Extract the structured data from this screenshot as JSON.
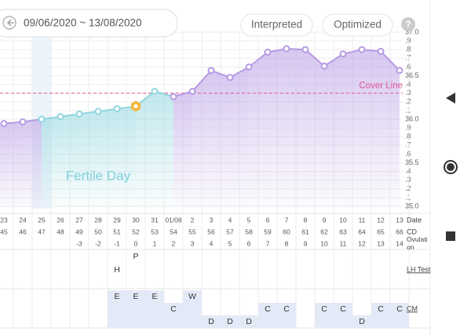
{
  "header": {
    "date_range": "09/06/2020 ~ 13/08/2020",
    "buttons": [
      "Interpreted",
      "Optimized"
    ],
    "help": "?"
  },
  "chart_data": {
    "type": "line",
    "categories": [
      "23",
      "24",
      "25",
      "26",
      "27",
      "28",
      "29",
      "30",
      "31",
      "01/08",
      "2",
      "3",
      "4",
      "5",
      "6",
      "7",
      "8",
      "9",
      "10",
      "11",
      "12",
      "13"
    ],
    "values": [
      35.95,
      35.97,
      36.0,
      36.03,
      36.06,
      36.09,
      36.12,
      36.15,
      36.32,
      36.26,
      36.32,
      36.56,
      36.48,
      36.6,
      36.77,
      36.81,
      36.8,
      36.61,
      36.75,
      36.8,
      36.78,
      36.56
    ],
    "color": "#b69ae4",
    "point_colors": [
      "#b69ae4",
      "#b69ae4",
      "#8fd6df",
      "#8fd6df",
      "#8fd6df",
      "#8fd6df",
      "#8fd6df",
      "#8fd6df",
      "#8fd6df",
      "#b69ae4",
      "#b69ae4",
      "#b69ae4",
      "#b69ae4",
      "#b69ae4",
      "#b69ae4",
      "#b69ae4",
      "#b69ae4",
      "#b69ae4",
      "#b69ae4",
      "#b69ae4",
      "#b69ae4",
      "#b69ae4"
    ],
    "ylim": [
      35,
      37
    ],
    "yticks": [
      {
        "value": 35,
        "label": "35.0"
      },
      {
        "value": 35.1,
        "label": ".1"
      },
      {
        "value": 35.2,
        "label": ".2"
      },
      {
        "value": 35.3,
        "label": ".3"
      },
      {
        "value": 35.4,
        "label": ".4"
      },
      35.5,
      {
        "value": 35.6,
        "label": ".6"
      },
      {
        "value": 35.7,
        "label": ".7"
      },
      {
        "value": 35.8,
        "label": ".8"
      },
      {
        "value": 35.9,
        "label": ".9"
      },
      {
        "value": 36,
        "label": "36.0"
      },
      {
        "value": 36.1,
        "label": ".1"
      },
      {
        "value": 36.2,
        "label": ".2"
      },
      {
        "value": 36.3,
        "label": ".3"
      },
      {
        "value": 36.4,
        "label": ".4"
      },
      36.5,
      {
        "value": 36.6,
        "label": ".6"
      },
      {
        "value": 36.7,
        "label": ".7"
      },
      {
        "value": 36.8,
        "label": ".8"
      },
      {
        "value": 36.9,
        "label": ".9"
      },
      {
        "value": 37,
        "label": "37.0"
      }
    ],
    "grid": true,
    "cover_line": 36.3,
    "cover_line_label": "Cover Line",
    "cover_line_color": "#e0559a",
    "ovulation_marker_color": "#f4b740",
    "annotation": "Fertile Day",
    "annotation_color": "#7fd0db",
    "selected_category": "25",
    "date_label": "Date"
  },
  "rows": {
    "cd_label": "CD",
    "cd": [
      45,
      46,
      47,
      48,
      49,
      50,
      51,
      52,
      53,
      54,
      55,
      56,
      57,
      58,
      59,
      60,
      61,
      62,
      63,
      64,
      65,
      66
    ],
    "ovulation_label": "Ovulation",
    "ovulation": [
      null,
      null,
      null,
      null,
      -3,
      -2,
      -1,
      0,
      1,
      2,
      3,
      4,
      5,
      6,
      7,
      8,
      9,
      10,
      11,
      12,
      13,
      14
    ]
  },
  "lh": {
    "label": "LH Test",
    "values": [
      null,
      null,
      null,
      null,
      null,
      null,
      "H",
      "P",
      null,
      null,
      null,
      null,
      null,
      null,
      null,
      null,
      null,
      null,
      null,
      null,
      null,
      null
    ],
    "levels": [
      null,
      null,
      null,
      null,
      null,
      null,
      1,
      2,
      null,
      null,
      null,
      null,
      null,
      null,
      null,
      null,
      null,
      null,
      null,
      null,
      null,
      null
    ]
  },
  "cm": {
    "label": "CM",
    "values": [
      null,
      null,
      null,
      null,
      null,
      null,
      "E",
      "E",
      "E",
      "C",
      "W",
      "D",
      "D",
      "D",
      "C",
      "C",
      null,
      "C",
      "C",
      "D",
      "C",
      "C"
    ],
    "levels": [
      null,
      null,
      null,
      null,
      null,
      null,
      3,
      3,
      3,
      2,
      3,
      1,
      1,
      1,
      2,
      2,
      null,
      2,
      2,
      1,
      2,
      2
    ]
  }
}
